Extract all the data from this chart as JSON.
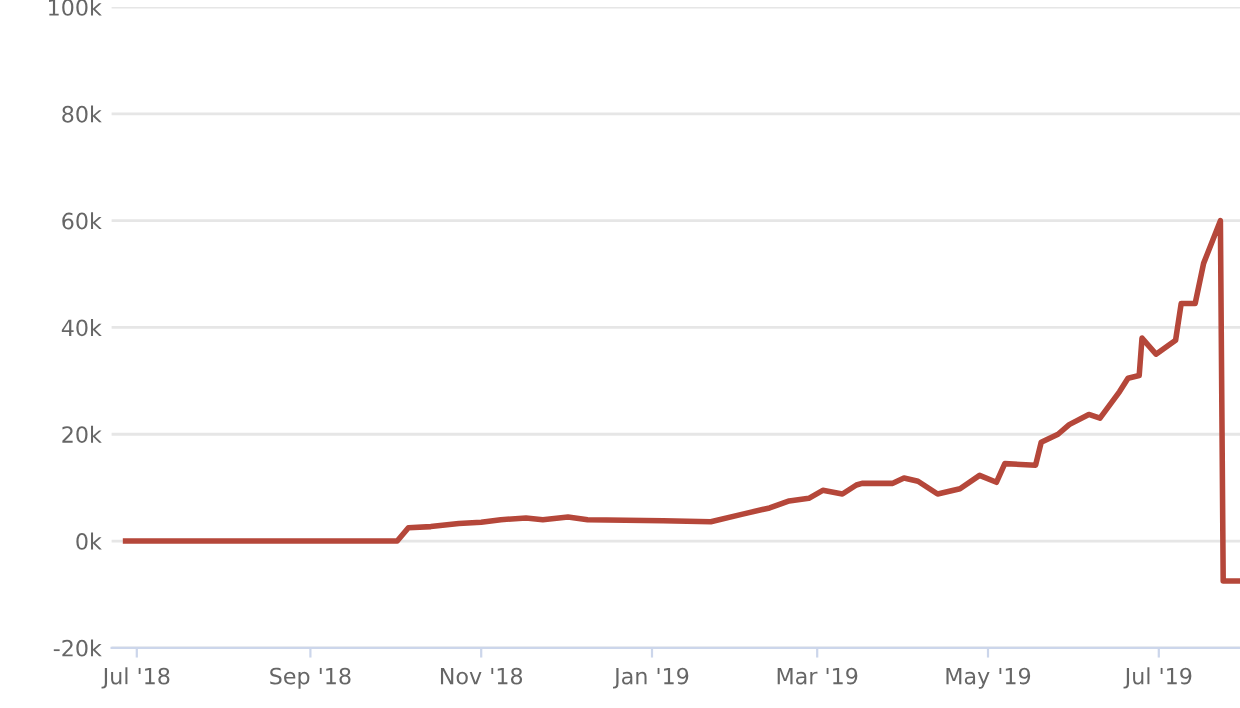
{
  "chart_data": {
    "type": "line",
    "x": [
      "2018-06-27",
      "2018-10-02",
      "2018-10-06",
      "2018-10-14",
      "2018-10-24",
      "2018-11-01",
      "2018-11-08",
      "2018-11-17",
      "2018-11-23",
      "2018-12-02",
      "2018-12-09",
      "2019-01-05",
      "2019-01-22",
      "2019-02-02",
      "2019-02-12",
      "2019-02-19",
      "2019-02-26",
      "2019-03-03",
      "2019-03-10",
      "2019-03-15",
      "2019-03-17",
      "2019-03-28",
      "2019-04-01",
      "2019-04-06",
      "2019-04-13",
      "2019-04-21",
      "2019-04-28",
      "2019-05-04",
      "2019-05-07",
      "2019-05-18",
      "2019-05-20",
      "2019-05-26",
      "2019-05-30",
      "2019-06-06",
      "2019-06-10",
      "2019-06-17",
      "2019-06-20",
      "2019-06-24",
      "2019-06-25",
      "2019-06-30",
      "2019-07-07",
      "2019-07-09",
      "2019-07-14",
      "2019-07-17",
      "2019-07-23",
      "2019-07-24",
      "2019-07-30"
    ],
    "series": [
      {
        "color": "#b5473a",
        "values": [
          0,
          0,
          2500,
          2700,
          3300,
          3500,
          4000,
          4300,
          4000,
          4500,
          4000,
          3800,
          3600,
          5000,
          6200,
          7500,
          8000,
          9500,
          8800,
          10500,
          10800,
          10800,
          11800,
          11200,
          8800,
          9800,
          12300,
          11000,
          14500,
          14200,
          18500,
          20000,
          21800,
          23700,
          23000,
          28000,
          30500,
          31000,
          38000,
          35000,
          37600,
          44500,
          44500,
          52000,
          60000,
          -7500,
          -7500
        ]
      }
    ],
    "xlim": [
      "2018-06-22",
      "2019-07-30"
    ],
    "xticks": [
      {
        "value": "2018-07-01",
        "label": "Jul '18"
      },
      {
        "value": "2018-09-01",
        "label": "Sep '18"
      },
      {
        "value": "2018-11-01",
        "label": "Nov '18"
      },
      {
        "value": "2019-01-01",
        "label": "Jan '19"
      },
      {
        "value": "2019-03-01",
        "label": "Mar '19"
      },
      {
        "value": "2019-05-01",
        "label": "May '19"
      },
      {
        "value": "2019-07-01",
        "label": "Jul '19"
      }
    ],
    "ylim": [
      -20000,
      100000
    ],
    "yticks": [
      {
        "value": -20000,
        "label": "-20k"
      },
      {
        "value": 0,
        "label": "0k"
      },
      {
        "value": 20000,
        "label": "20k"
      },
      {
        "value": 40000,
        "label": "40k"
      },
      {
        "value": 60000,
        "label": "60k"
      },
      {
        "value": 80000,
        "label": "80k"
      },
      {
        "value": 100000,
        "label": "100k"
      }
    ],
    "grid": "y",
    "marker": "none",
    "line_style": "solid",
    "legend": false
  }
}
